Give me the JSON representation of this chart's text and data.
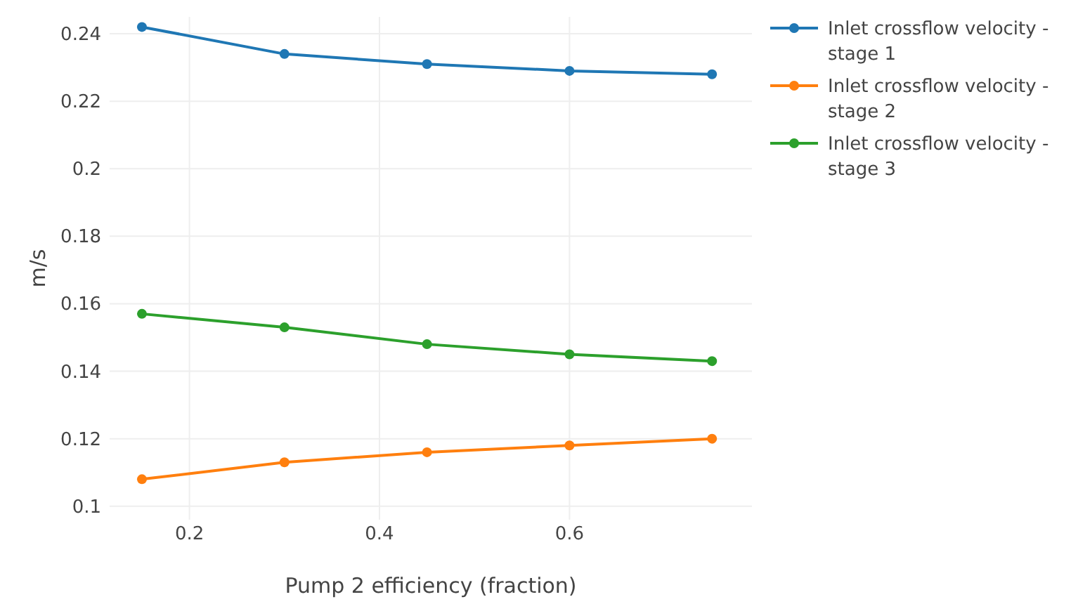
{
  "chart_data": {
    "type": "line",
    "xlabel": "Pump 2 efficiency (fraction)",
    "ylabel": "m/s",
    "x": [
      0.15,
      0.3,
      0.45,
      0.6,
      0.75
    ],
    "series": [
      {
        "name": "Inlet crossflow velocity - stage 1",
        "color": "#1f77b4",
        "values": [
          0.242,
          0.234,
          0.231,
          0.229,
          0.228
        ]
      },
      {
        "name": "Inlet crossflow velocity - stage 2",
        "color": "#ff7f0e",
        "values": [
          0.108,
          0.113,
          0.116,
          0.118,
          0.12
        ]
      },
      {
        "name": "Inlet crossflow velocity - stage 3",
        "color": "#2ca02c",
        "values": [
          0.157,
          0.153,
          0.148,
          0.145,
          0.143
        ]
      }
    ],
    "xlim": [
      0.116,
      0.792
    ],
    "ylim": [
      0.096,
      0.245
    ],
    "xticks": [
      0.2,
      0.4,
      0.6
    ],
    "yticks": [
      {
        "value": 0.1,
        "label": "0.1"
      },
      0.12,
      0.14,
      0.16,
      0.18,
      {
        "value": 0.2,
        "label": "0.2"
      },
      0.22,
      0.24
    ],
    "grid": true,
    "legend": "top right",
    "marker": "circle",
    "line_style": "solid"
  }
}
